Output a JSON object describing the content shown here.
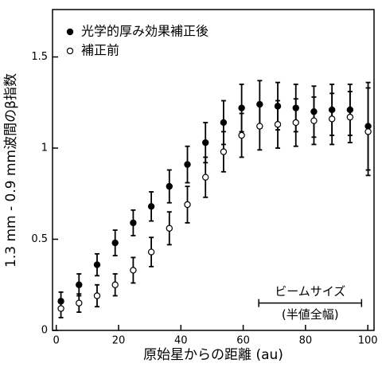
{
  "chart_data": {
    "type": "scatter",
    "x_label": "原始星からの距離 (au)",
    "y_label": "1.3 mm - 0.9 mm波間のβ指数",
    "x": [
      1.5,
      7.3,
      13.1,
      18.9,
      24.7,
      30.5,
      36.3,
      42.1,
      47.9,
      53.7,
      59.5,
      65.3,
      71.1,
      76.9,
      82.7,
      88.5,
      94.3,
      100.1
    ],
    "series": [
      {
        "name": "光学的厚み効果補正後",
        "color": "#000000",
        "facecolor": "#000000",
        "values": [
          0.16,
          0.25,
          0.36,
          0.48,
          0.59,
          0.68,
          0.79,
          0.91,
          1.03,
          1.14,
          1.22,
          1.24,
          1.23,
          1.22,
          1.2,
          1.21,
          1.21,
          1.12
        ],
        "errors": [
          0.05,
          0.06,
          0.06,
          0.07,
          0.07,
          0.08,
          0.09,
          0.1,
          0.11,
          0.12,
          0.13,
          0.13,
          0.13,
          0.13,
          0.14,
          0.14,
          0.14,
          0.24
        ]
      },
      {
        "name": "補正前",
        "color": "#000000",
        "facecolor": "#ffffff",
        "values": [
          0.12,
          0.15,
          0.19,
          0.25,
          0.33,
          0.43,
          0.56,
          0.69,
          0.84,
          0.98,
          1.07,
          1.12,
          1.13,
          1.14,
          1.15,
          1.16,
          1.17,
          1.09
        ],
        "errors": [
          0.05,
          0.05,
          0.06,
          0.06,
          0.07,
          0.08,
          0.09,
          0.1,
          0.11,
          0.11,
          0.12,
          0.13,
          0.13,
          0.13,
          0.13,
          0.14,
          0.14,
          0.24
        ]
      }
    ],
    "xlim": [
      -1.2,
      102
    ],
    "ylim": [
      0,
      1.76
    ],
    "xticks": [
      0,
      20,
      40,
      60,
      80,
      100
    ],
    "yticks": [
      0,
      0.5,
      1,
      1.5
    ],
    "legend": "upper left",
    "annotation": {
      "text": "ビームサイズ",
      "subtext": "(半値全幅)",
      "x": [
        65,
        98
      ],
      "y": 0.15
    }
  }
}
